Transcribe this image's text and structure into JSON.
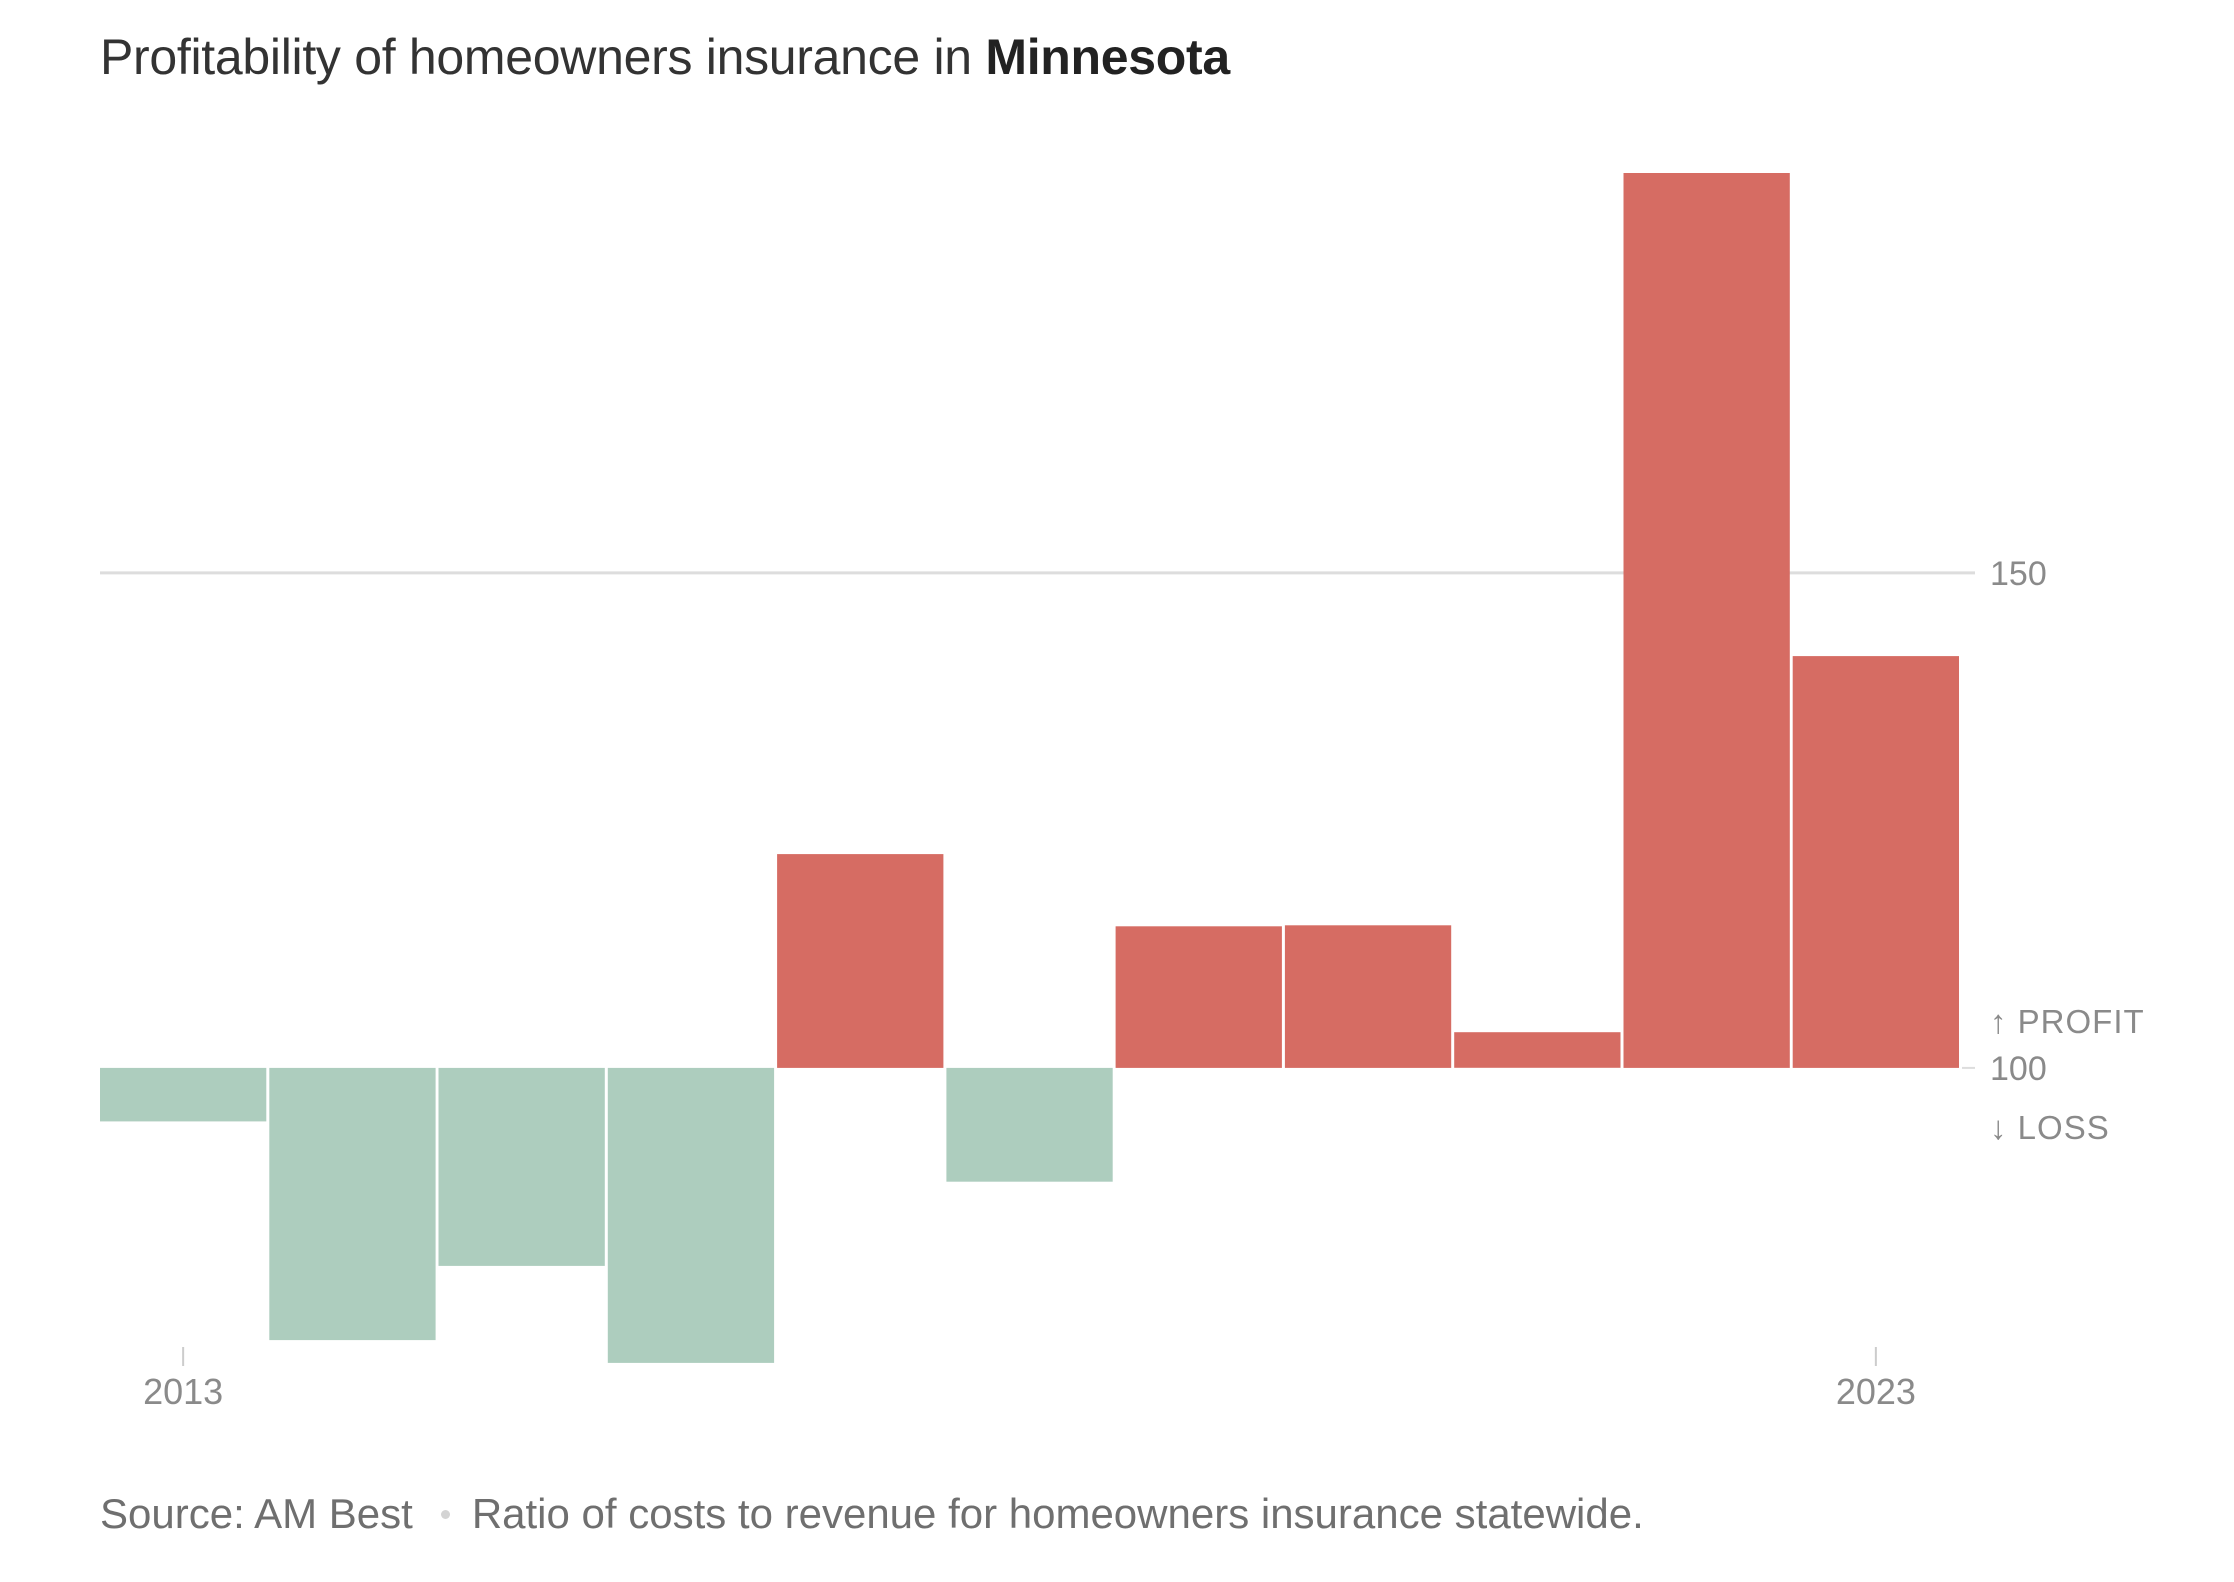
{
  "title": {
    "prefix": "Profitability of homeowners insurance in ",
    "state": "Minnesota"
  },
  "footer": {
    "source": "Source: AM Best",
    "note": "Ratio of costs to revenue for homeowners insurance statewide."
  },
  "chart_data": {
    "type": "bar",
    "title": "Profitability of homeowners insurance in Minnesota",
    "categories": [
      "2013",
      "2014",
      "2015",
      "2016",
      "2017",
      "2018",
      "2019",
      "2020",
      "2021",
      "2022",
      "2023"
    ],
    "values": [
      94.6,
      72.5,
      80.0,
      70.2,
      121.6,
      88.5,
      114.3,
      114.4,
      103.6,
      190.4,
      141.6
    ],
    "x_tick_labels": [
      "2013",
      "2023"
    ],
    "y_ticks": [
      100,
      150
    ],
    "y_reference": 100,
    "ylim": [
      190.6,
      71.3
    ],
    "direction_labels": {
      "up": "↑ PROFIT",
      "down": "↓ LOSS"
    },
    "colors": {
      "profit": "#adcdbe",
      "loss": "#d66c63",
      "gridline": "#dddddd",
      "tick": "#cccccc"
    },
    "grid": true
  }
}
